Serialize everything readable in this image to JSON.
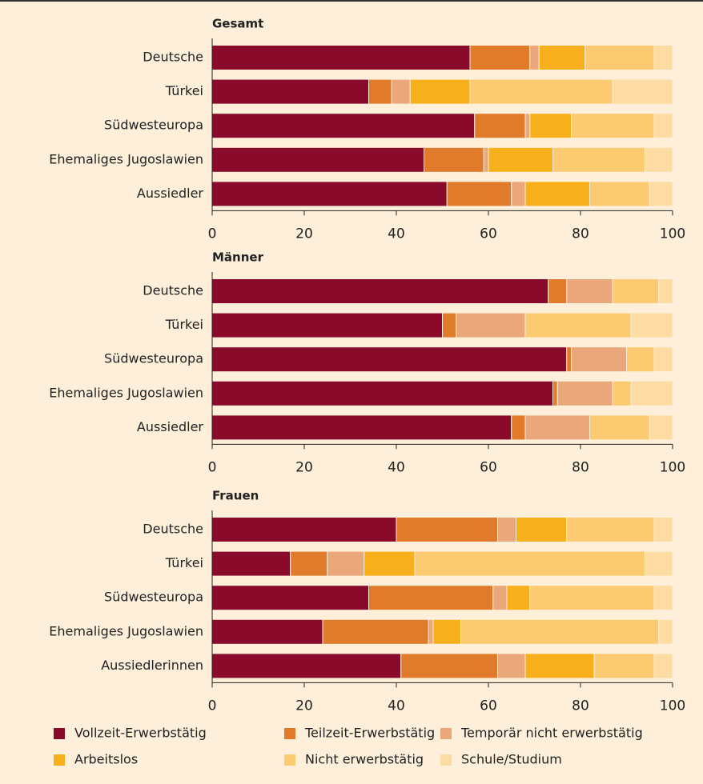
{
  "chart_data": {
    "type": "bar",
    "orientation": "horizontal",
    "stacked": true,
    "xlim": [
      0,
      100
    ],
    "xticks": [
      0,
      20,
      40,
      60,
      80,
      100
    ],
    "legend": [
      {
        "name": "Vollzeit-Erwerbstätig",
        "color": "#8a0a2c"
      },
      {
        "name": "Teilzeit-Erwerbstätig",
        "color": "#df7b2a"
      },
      {
        "name": "Temporär nicht erwerbstätig",
        "color": "#eaa77c"
      },
      {
        "name": "Arbeitslos",
        "color": "#f7b01c"
      },
      {
        "name": "Nicht erwerbstätig",
        "color": "#fcca70"
      },
      {
        "name": "Schule/Studium",
        "color": "#fddca3"
      }
    ],
    "panels": [
      {
        "title": "Gesamt",
        "categories": [
          "Deutsche",
          "Türkei",
          "Südwesteuropa",
          "Ehemaliges Jugoslawien",
          "Aussiedler"
        ],
        "series": [
          {
            "values": [
              56,
              34,
              57,
              46,
              51
            ]
          },
          {
            "values": [
              13,
              5,
              11,
              13,
              14
            ]
          },
          {
            "values": [
              2,
              4,
              1,
              1,
              3
            ]
          },
          {
            "values": [
              10,
              13,
              9,
              14,
              14
            ]
          },
          {
            "values": [
              15,
              31,
              18,
              20,
              13
            ]
          },
          {
            "values": [
              4,
              13,
              4,
              6,
              5
            ]
          }
        ]
      },
      {
        "title": "Männer",
        "categories": [
          "Deutsche",
          "Türkei",
          "Südwesteuropa",
          "Ehemaliges Jugoslawien",
          "Aussiedler"
        ],
        "series": [
          {
            "values": [
              73,
              50,
              77,
              74,
              65
            ]
          },
          {
            "values": [
              4,
              3,
              1,
              1,
              3
            ]
          },
          {
            "values": [
              10,
              15,
              12,
              12,
              14
            ]
          },
          {
            "values": [
              0,
              0,
              0,
              0,
              0
            ]
          },
          {
            "values": [
              10,
              23,
              6,
              4,
              13
            ]
          },
          {
            "values": [
              3,
              9,
              4,
              9,
              5
            ]
          }
        ]
      },
      {
        "title": "Frauen",
        "categories": [
          "Deutsche",
          "Türkei",
          "Südwesteuropa",
          "Ehemaliges Jugoslawien",
          "Aussiedlerinnen"
        ],
        "series": [
          {
            "values": [
              40,
              17,
              34,
              24,
              41
            ]
          },
          {
            "values": [
              22,
              8,
              27,
              23,
              21
            ]
          },
          {
            "values": [
              4,
              8,
              3,
              1,
              6
            ]
          },
          {
            "values": [
              11,
              11,
              5,
              6,
              15
            ]
          },
          {
            "values": [
              19,
              50,
              27,
              43,
              13
            ]
          },
          {
            "values": [
              4,
              6,
              4,
              3,
              4
            ]
          }
        ]
      }
    ]
  }
}
